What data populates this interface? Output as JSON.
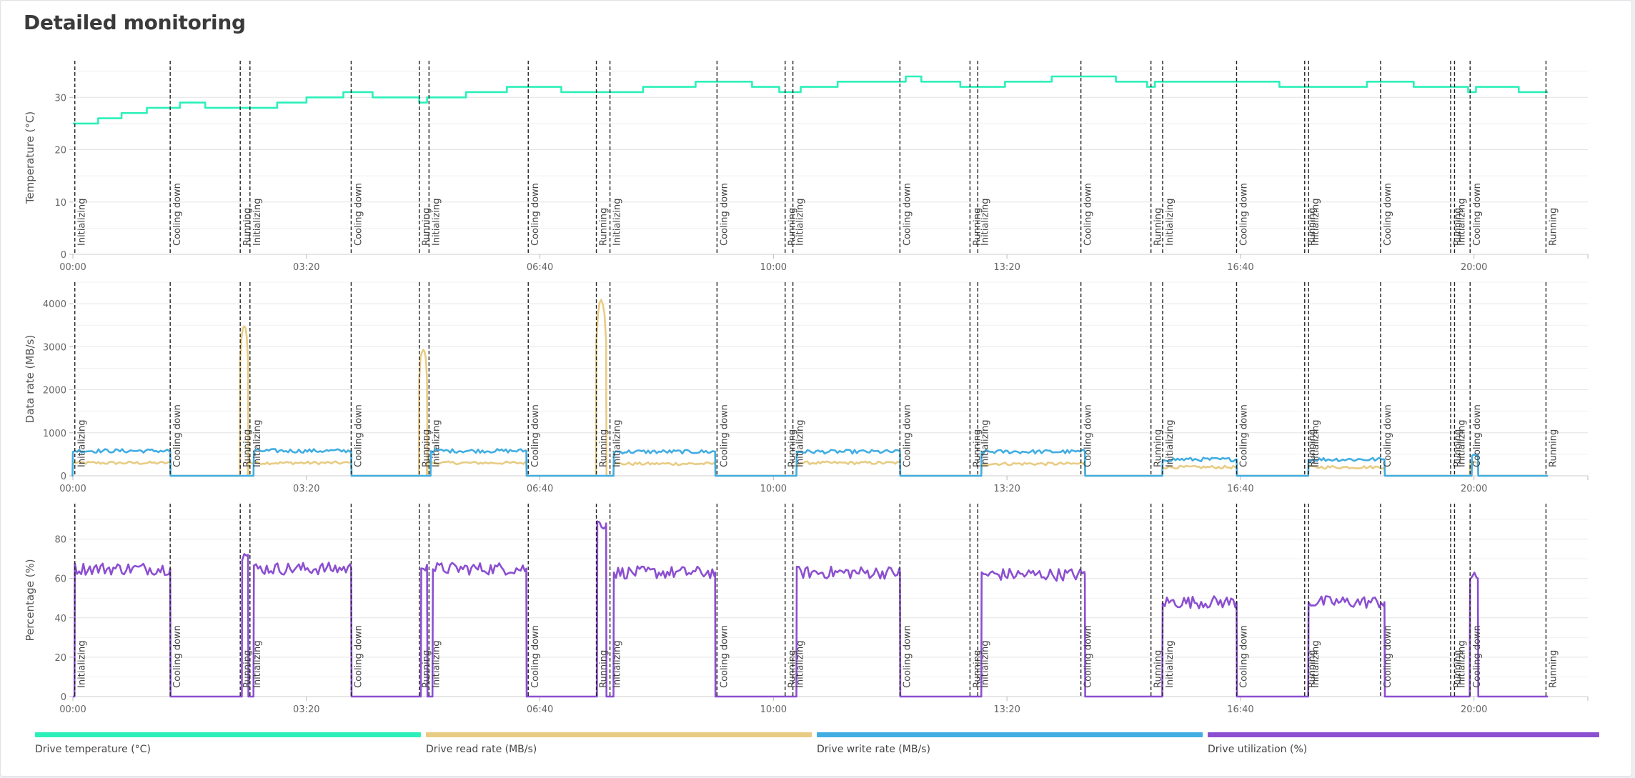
{
  "title": "Detailed monitoring",
  "legend": [
    {
      "label": "Drive temperature (°C)",
      "color": "#2cf0b9"
    },
    {
      "label": "Drive read rate (MB/s)",
      "color": "#e8cc84"
    },
    {
      "label": "Drive write rate (MB/s)",
      "color": "#41ade2"
    },
    {
      "label": "Drive utilization (%)",
      "color": "#8c4fd1"
    }
  ],
  "chart_data": [
    {
      "type": "line",
      "ylabel": "Temperature (°C)",
      "xlabel": "",
      "ylim": [
        0,
        37
      ],
      "yticks": [
        0,
        10,
        20,
        30
      ],
      "xlim": [
        0,
        77850
      ],
      "xticks": [
        {
          "t": 0,
          "label": "00:00"
        },
        {
          "t": 12000,
          "label": "03:20"
        },
        {
          "t": 24000,
          "label": "06:40"
        },
        {
          "t": 36000,
          "label": "10:00"
        },
        {
          "t": 48000,
          "label": "13:20"
        },
        {
          "t": 60000,
          "label": "16:40"
        },
        {
          "t": 72000,
          "label": "20:00"
        }
      ],
      "grid": true,
      "series": [
        {
          "name": "Drive temperature (°C)",
          "color": "#2cf0b9",
          "step": true,
          "values": [
            [
              0,
              25
            ],
            [
              1300,
              26
            ],
            [
              2500,
              27
            ],
            [
              3800,
              28
            ],
            [
              5500,
              29
            ],
            [
              6800,
              28
            ],
            [
              8000,
              28
            ],
            [
              10500,
              29
            ],
            [
              12000,
              30
            ],
            [
              13900,
              31
            ],
            [
              15400,
              30
            ],
            [
              17800,
              29
            ],
            [
              18200,
              30
            ],
            [
              20200,
              31
            ],
            [
              22300,
              32
            ],
            [
              25100,
              31
            ],
            [
              26800,
              31
            ],
            [
              29300,
              32
            ],
            [
              32000,
              33
            ],
            [
              34900,
              32
            ],
            [
              36300,
              31
            ],
            [
              37400,
              32
            ],
            [
              39300,
              33
            ],
            [
              42800,
              34
            ],
            [
              43600,
              33
            ],
            [
              45600,
              32
            ],
            [
              47900,
              33
            ],
            [
              50300,
              34
            ],
            [
              53600,
              33
            ],
            [
              55200,
              32
            ],
            [
              55600,
              33
            ],
            [
              62000,
              32
            ],
            [
              66500,
              33
            ],
            [
              68900,
              32
            ],
            [
              71700,
              31
            ],
            [
              72100,
              32
            ],
            [
              74300,
              31
            ],
            [
              75800,
              31
            ]
          ]
        }
      ]
    },
    {
      "type": "line",
      "ylabel": "Data rate (MB/s)",
      "xlabel": "",
      "ylim": [
        0,
        4500
      ],
      "yticks": [
        0,
        1000,
        2000,
        3000,
        4000
      ],
      "xlim": [
        0,
        77850
      ],
      "xticks": [
        {
          "t": 0,
          "label": "00:00"
        },
        {
          "t": 12000,
          "label": "03:20"
        },
        {
          "t": 24000,
          "label": "06:40"
        },
        {
          "t": 36000,
          "label": "10:00"
        },
        {
          "t": 48000,
          "label": "13:20"
        },
        {
          "t": 60000,
          "label": "16:40"
        },
        {
          "t": 72000,
          "label": "20:00"
        }
      ],
      "grid": true,
      "series": [
        {
          "name": "Drive read rate (MB/s)",
          "color": "#e8cc84",
          "plateaus": [
            [
              0,
              5000,
              300
            ],
            [
              9000,
              14300,
              300
            ],
            [
              18200,
              23300,
              300
            ],
            [
              27800,
              33000,
              280
            ],
            [
              37200,
              42500,
              300
            ],
            [
              46700,
              52000,
              280
            ],
            [
              56000,
              59800,
              200
            ],
            [
              63500,
              67400,
              200
            ],
            [
              71800,
              72200,
              300
            ]
          ],
          "spikes": [
            [
              8600,
              9000,
              3500
            ],
            [
              17800,
              18200,
              2950
            ],
            [
              26900,
              27400,
              4100
            ]
          ]
        },
        {
          "name": "Drive write rate (MB/s)",
          "color": "#41ade2",
          "plateaus": [
            [
              0,
              5000,
              580
            ],
            [
              9300,
              14300,
              580
            ],
            [
              18400,
              23300,
              580
            ],
            [
              27800,
              33000,
              560
            ],
            [
              37200,
              42500,
              560
            ],
            [
              46700,
              52000,
              560
            ],
            [
              56000,
              59800,
              380
            ],
            [
              63500,
              67400,
              380
            ],
            [
              71900,
              72200,
              500
            ]
          ]
        }
      ]
    },
    {
      "type": "line",
      "ylabel": "Percentage (%)",
      "xlabel": "",
      "ylim": [
        0,
        98
      ],
      "yticks": [
        0,
        20,
        40,
        60,
        80
      ],
      "xlim": [
        0,
        77850
      ],
      "xticks": [
        {
          "t": 0,
          "label": "00:00"
        },
        {
          "t": 12000,
          "label": "03:20"
        },
        {
          "t": 24000,
          "label": "06:40"
        },
        {
          "t": 36000,
          "label": "10:00"
        },
        {
          "t": 48000,
          "label": "13:20"
        },
        {
          "t": 60000,
          "label": "16:40"
        },
        {
          "t": 72000,
          "label": "20:00"
        }
      ],
      "grid": true,
      "series": [
        {
          "name": "Drive utilization (%)",
          "color": "#8c4fd1",
          "plateaus": [
            [
              100,
              5000,
              65
            ],
            [
              8700,
              9000,
              72
            ],
            [
              9300,
              14300,
              65
            ],
            [
              17900,
              18200,
              67
            ],
            [
              18500,
              23300,
              65
            ],
            [
              26950,
              27400,
              88
            ],
            [
              27800,
              33000,
              63
            ],
            [
              37200,
              42500,
              63
            ],
            [
              46700,
              52000,
              62
            ],
            [
              56000,
              59800,
              48
            ],
            [
              63500,
              67400,
              48
            ],
            [
              71800,
              72200,
              60
            ]
          ]
        }
      ]
    }
  ],
  "markers": [
    {
      "t": 100,
      "label": "Initializing"
    },
    {
      "t": 5000,
      "label": "Cooling down"
    },
    {
      "t": 8600,
      "label": "Running"
    },
    {
      "t": 9100,
      "label": "Initializing"
    },
    {
      "t": 14300,
      "label": "Cooling down"
    },
    {
      "t": 17800,
      "label": "Running"
    },
    {
      "t": 18300,
      "label": "Initializing"
    },
    {
      "t": 23400,
      "label": "Cooling down"
    },
    {
      "t": 26900,
      "label": "Running"
    },
    {
      "t": 27600,
      "label": "Initializing"
    },
    {
      "t": 33100,
      "label": "Cooling down"
    },
    {
      "t": 36600,
      "label": "Running"
    },
    {
      "t": 37000,
      "label": "Initializing"
    },
    {
      "t": 42500,
      "label": "Cooling down"
    },
    {
      "t": 46100,
      "label": "Running"
    },
    {
      "t": 46500,
      "label": "Initializing"
    },
    {
      "t": 51800,
      "label": "Cooling down"
    },
    {
      "t": 55400,
      "label": "Running"
    },
    {
      "t": 56000,
      "label": "Initializing"
    },
    {
      "t": 59800,
      "label": "Cooling down"
    },
    {
      "t": 63300,
      "label": "Running"
    },
    {
      "t": 63500,
      "label": "Initializing"
    },
    {
      "t": 67200,
      "label": "Cooling down"
    },
    {
      "t": 70800,
      "label": "Running"
    },
    {
      "t": 71000,
      "label": "Initializing"
    },
    {
      "t": 71800,
      "label": "Cooling down"
    },
    {
      "t": 75700,
      "label": "Running"
    }
  ]
}
